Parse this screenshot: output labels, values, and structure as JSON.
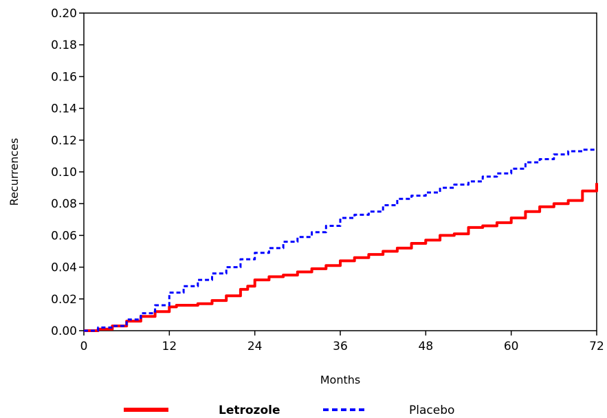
{
  "chart_data": {
    "type": "line",
    "title": "",
    "xlabel": "Months",
    "ylabel": "Recurrences",
    "xlim": [
      0,
      72
    ],
    "ylim": [
      0.0,
      0.2
    ],
    "x_ticks": [
      0,
      12,
      24,
      36,
      48,
      60,
      72
    ],
    "x_tick_labels": [
      "0",
      "12",
      "24",
      "36",
      "48",
      "60",
      "72"
    ],
    "y_ticks": [
      0.0,
      0.02,
      0.04,
      0.06,
      0.08,
      0.1,
      0.12,
      0.14,
      0.16,
      0.18,
      0.2
    ],
    "y_tick_labels": [
      "0.00",
      "0.02",
      "0.04",
      "0.06",
      "0.08",
      "0.10",
      "0.12",
      "0.14",
      "0.16",
      "0.18",
      "0.20"
    ],
    "grid": false,
    "legend_position": "bottom",
    "series": [
      {
        "name": "Letrozole",
        "color": "#ff0000",
        "style": "solid",
        "x": [
          0,
          2,
          4,
          6,
          8,
          10,
          12,
          13,
          16,
          18,
          20,
          22,
          23,
          24,
          26,
          28,
          30,
          32,
          34,
          36,
          38,
          40,
          42,
          44,
          46,
          48,
          50,
          52,
          54,
          56,
          58,
          60,
          62,
          64,
          66,
          68,
          70,
          72
        ],
        "y": [
          0.0,
          0.001,
          0.003,
          0.006,
          0.009,
          0.012,
          0.015,
          0.016,
          0.017,
          0.019,
          0.022,
          0.026,
          0.028,
          0.032,
          0.034,
          0.035,
          0.037,
          0.039,
          0.041,
          0.044,
          0.046,
          0.048,
          0.05,
          0.052,
          0.055,
          0.057,
          0.06,
          0.061,
          0.065,
          0.066,
          0.068,
          0.071,
          0.075,
          0.078,
          0.08,
          0.082,
          0.088,
          0.093
        ]
      },
      {
        "name": "Placebo",
        "color": "#0000ff",
        "style": "dashed",
        "x": [
          0,
          2,
          4,
          6,
          8,
          10,
          12,
          14,
          16,
          18,
          20,
          22,
          24,
          26,
          28,
          30,
          32,
          34,
          36,
          38,
          40,
          42,
          44,
          46,
          48,
          50,
          52,
          54,
          56,
          58,
          60,
          62,
          64,
          66,
          68,
          70,
          72
        ],
        "y": [
          0.0,
          0.002,
          0.003,
          0.007,
          0.011,
          0.016,
          0.024,
          0.028,
          0.032,
          0.036,
          0.04,
          0.045,
          0.049,
          0.052,
          0.056,
          0.059,
          0.062,
          0.066,
          0.071,
          0.073,
          0.075,
          0.079,
          0.083,
          0.085,
          0.087,
          0.09,
          0.092,
          0.094,
          0.097,
          0.099,
          0.102,
          0.106,
          0.108,
          0.111,
          0.113,
          0.114,
          0.114
        ]
      }
    ]
  }
}
